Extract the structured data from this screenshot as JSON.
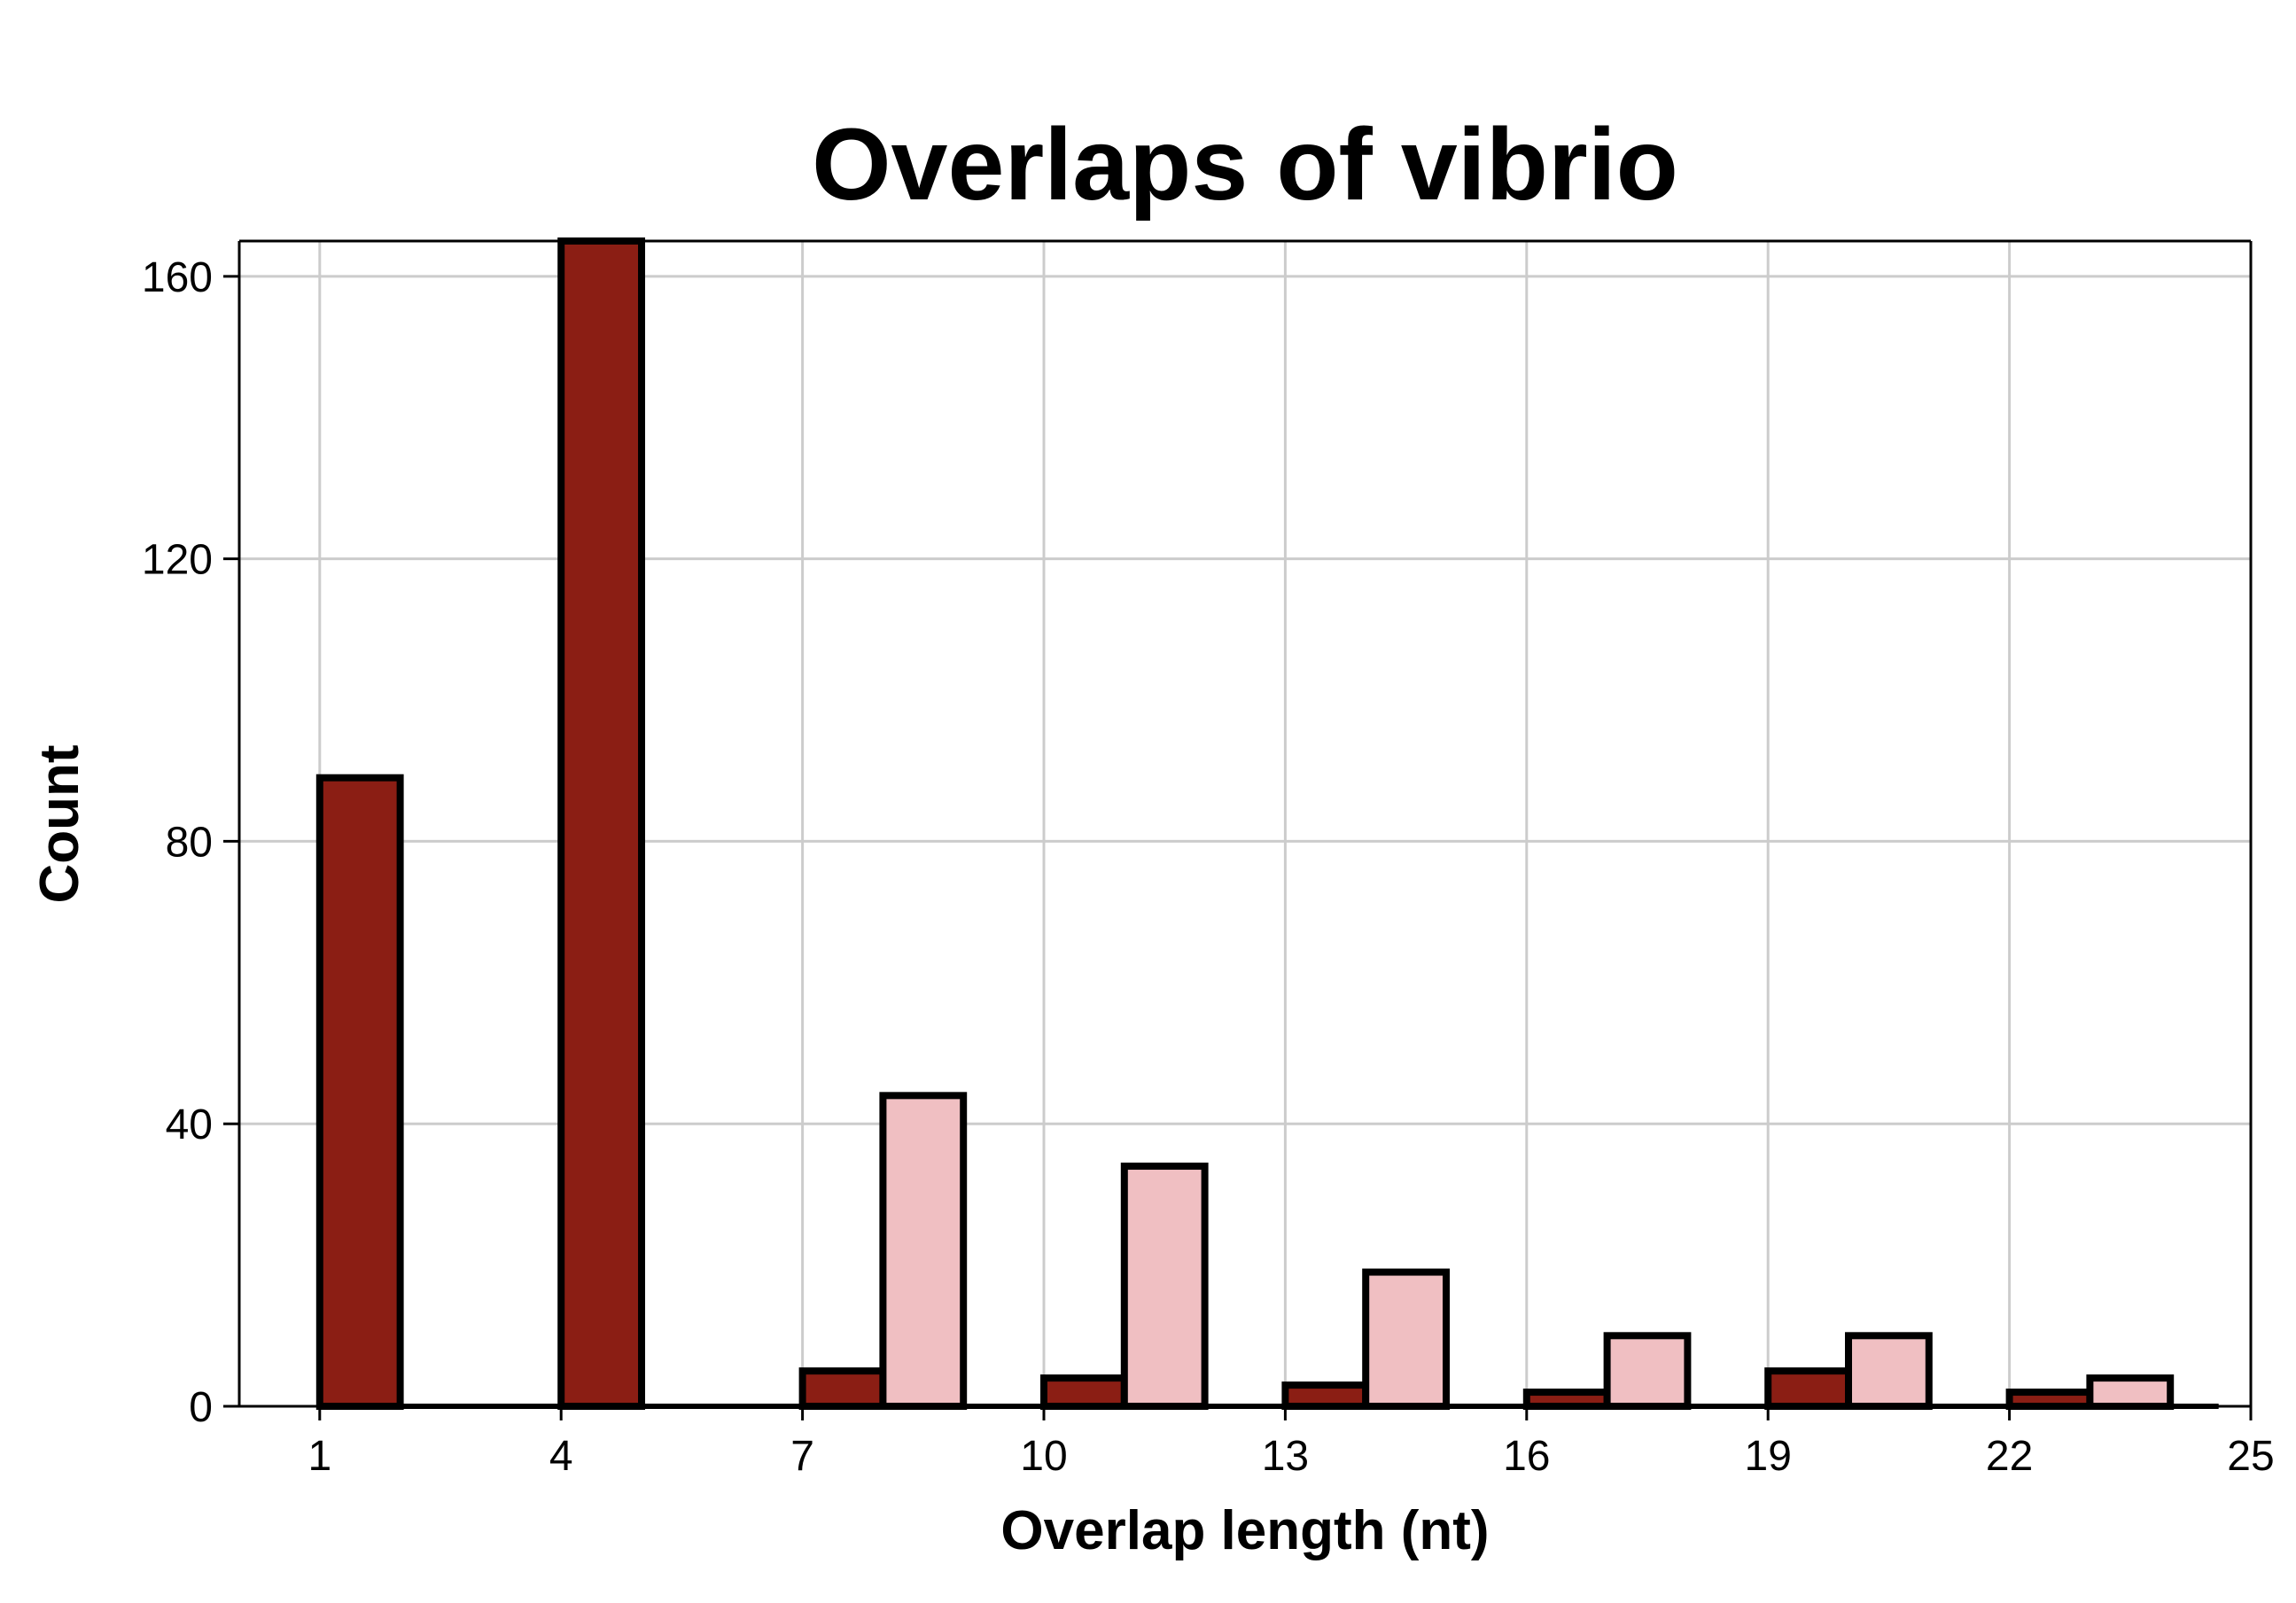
{
  "chart_data": {
    "type": "bar",
    "title": "Overlaps of vibrio",
    "xlabel": "Overlap length (nt)",
    "ylabel": "Count",
    "xlim": [
      0,
      25
    ],
    "ylim": [
      0,
      165
    ],
    "xticks": [
      1,
      4,
      7,
      10,
      13,
      16,
      19,
      22,
      25
    ],
    "yticks": [
      0,
      40,
      80,
      120,
      160
    ],
    "grid": true,
    "legend": "none",
    "bin_width": 1,
    "series": [
      {
        "color": "#8b1e14",
        "bins": [
          {
            "x": 1,
            "value": 89
          },
          {
            "x": 2,
            "value": 0
          },
          {
            "x": 3,
            "value": 0
          },
          {
            "x": 4,
            "value": 165
          },
          {
            "x": 5,
            "value": 0
          },
          {
            "x": 6,
            "value": 0
          },
          {
            "x": 7,
            "value": 5
          },
          {
            "x": 8,
            "value": 0
          },
          {
            "x": 9,
            "value": 0
          },
          {
            "x": 10,
            "value": 4
          },
          {
            "x": 11,
            "value": 0
          },
          {
            "x": 12,
            "value": 0
          },
          {
            "x": 13,
            "value": 3
          },
          {
            "x": 14,
            "value": 0
          },
          {
            "x": 15,
            "value": 0
          },
          {
            "x": 16,
            "value": 2
          },
          {
            "x": 17,
            "value": 0
          },
          {
            "x": 18,
            "value": 0
          },
          {
            "x": 19,
            "value": 5
          },
          {
            "x": 20,
            "value": 0
          },
          {
            "x": 21,
            "value": 0
          },
          {
            "x": 22,
            "value": 2
          },
          {
            "x": 23,
            "value": 0
          },
          {
            "x": 24,
            "value": 0
          }
        ]
      },
      {
        "color": "#f0bfc2",
        "bins": [
          {
            "x": 2,
            "value": 0
          },
          {
            "x": 5,
            "value": 0
          },
          {
            "x": 8,
            "value": 44
          },
          {
            "x": 11,
            "value": 34
          },
          {
            "x": 14,
            "value": 19
          },
          {
            "x": 17,
            "value": 10
          },
          {
            "x": 20,
            "value": 10
          },
          {
            "x": 23,
            "value": 4
          }
        ]
      }
    ]
  }
}
